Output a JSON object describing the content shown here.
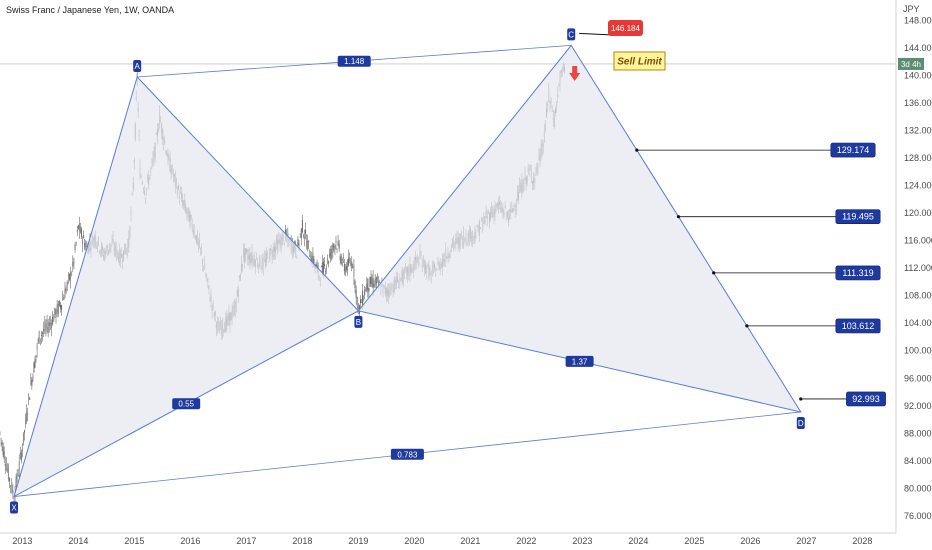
{
  "header": {
    "title": "Swiss Franc / Japanese Yen, 1W, OANDA"
  },
  "currency_label": "JPY",
  "price_badge": {
    "label": "3d 4h",
    "value": 141.7
  },
  "sell_limit": {
    "label": "Sell Limit",
    "price": "146.184"
  },
  "colors": {
    "pattern_line": "#5b7bd6",
    "pattern_fill": "#e5e7ee",
    "label_bg": "#1e3a9e",
    "badge_green": "#5c8d72",
    "up_candle": "#8e8e8e",
    "down_candle": "#6a6a6a",
    "arrow_red": "#ef4444",
    "sell_limit_bg": "#fff59d"
  },
  "chart_data": {
    "type": "harmonic_pattern",
    "title": "Swiss Franc / Japanese Yen, 1W, OANDA",
    "x_axis": {
      "type": "time",
      "range": [
        2012.6,
        2028.6
      ],
      "ticks": [
        "2013",
        "2014",
        "2015",
        "2016",
        "2017",
        "2018",
        "2019",
        "2020",
        "2021",
        "2022",
        "2023",
        "2024",
        "2025",
        "2026",
        "2027",
        "2028"
      ]
    },
    "y_axis": {
      "unit": "JPY",
      "range": [
        73.5,
        151.0
      ],
      "ticks": [
        "76.000",
        "80.000",
        "84.000",
        "88.000",
        "92.000",
        "96.000",
        "100.000",
        "104.000",
        "108.000",
        "112.000",
        "116.000",
        "120.000",
        "124.000",
        "128.000",
        "132.000",
        "136.000",
        "140.000",
        "144.000",
        "148.000"
      ]
    },
    "points": [
      {
        "name": "X",
        "x": 2012.85,
        "y": 78.8
      },
      {
        "name": "A",
        "x": 2015.05,
        "y": 139.8
      },
      {
        "name": "B",
        "x": 2019.0,
        "y": 105.8
      },
      {
        "name": "C",
        "x": 2022.8,
        "y": 144.4
      },
      {
        "name": "D",
        "x": 2026.9,
        "y": 91.1
      }
    ],
    "ratios": [
      {
        "label": "1.148",
        "from": "A",
        "to": "C"
      },
      {
        "label": "0.55",
        "from": "X",
        "to": "B"
      },
      {
        "label": "1.37",
        "from": "B",
        "to": "D"
      },
      {
        "label": "0.783",
        "from": "X",
        "to": "D"
      }
    ],
    "levels": [
      {
        "label": "129.174",
        "value": 129.174
      },
      {
        "label": "119.495",
        "value": 119.495
      },
      {
        "label": "111.319",
        "value": 111.319
      },
      {
        "label": "103.612",
        "value": 103.612
      },
      {
        "label": "92.993",
        "value": 92.993
      }
    ],
    "price_path": [
      [
        2012.6,
        88.0
      ],
      [
        2012.75,
        82.0
      ],
      [
        2012.85,
        78.8
      ],
      [
        2013.0,
        86.0
      ],
      [
        2013.15,
        95.0
      ],
      [
        2013.3,
        102.0
      ],
      [
        2013.5,
        104.0
      ],
      [
        2013.7,
        107.0
      ],
      [
        2013.9,
        112.0
      ],
      [
        2014.0,
        118.0
      ],
      [
        2014.15,
        115.0
      ],
      [
        2014.3,
        116.5
      ],
      [
        2014.45,
        114.0
      ],
      [
        2014.6,
        115.5
      ],
      [
        2014.75,
        113.5
      ],
      [
        2014.9,
        115.5
      ],
      [
        2014.98,
        124.0
      ],
      [
        2015.05,
        139.8
      ],
      [
        2015.1,
        126.0
      ],
      [
        2015.2,
        123.0
      ],
      [
        2015.35,
        128.0
      ],
      [
        2015.45,
        134.0
      ],
      [
        2015.6,
        128.0
      ],
      [
        2015.75,
        124.0
      ],
      [
        2015.9,
        121.0
      ],
      [
        2016.05,
        118.0
      ],
      [
        2016.2,
        114.0
      ],
      [
        2016.35,
        108.0
      ],
      [
        2016.5,
        103.0
      ],
      [
        2016.65,
        104.0
      ],
      [
        2016.8,
        106.0
      ],
      [
        2016.95,
        114.0
      ],
      [
        2017.1,
        113.5
      ],
      [
        2017.3,
        112.5
      ],
      [
        2017.5,
        115.0
      ],
      [
        2017.7,
        116.5
      ],
      [
        2017.9,
        114.5
      ],
      [
        2018.0,
        118.0
      ],
      [
        2018.15,
        114.0
      ],
      [
        2018.3,
        111.0
      ],
      [
        2018.45,
        113.0
      ],
      [
        2018.6,
        116.0
      ],
      [
        2018.75,
        112.0
      ],
      [
        2018.9,
        113.0
      ],
      [
        2019.0,
        105.8
      ],
      [
        2019.15,
        109.5
      ],
      [
        2019.3,
        110.0
      ],
      [
        2019.5,
        108.5
      ],
      [
        2019.7,
        110.0
      ],
      [
        2019.9,
        111.5
      ],
      [
        2020.1,
        113.5
      ],
      [
        2020.3,
        111.0
      ],
      [
        2020.5,
        113.0
      ],
      [
        2020.7,
        115.5
      ],
      [
        2020.9,
        116.5
      ],
      [
        2021.1,
        117.0
      ],
      [
        2021.3,
        119.5
      ],
      [
        2021.5,
        121.0
      ],
      [
        2021.7,
        119.5
      ],
      [
        2021.9,
        123.5
      ],
      [
        2022.05,
        126.0
      ],
      [
        2022.15,
        125.0
      ],
      [
        2022.3,
        130.0
      ],
      [
        2022.4,
        137.0
      ],
      [
        2022.5,
        133.5
      ],
      [
        2022.6,
        139.5
      ],
      [
        2022.7,
        141.7
      ]
    ]
  }
}
